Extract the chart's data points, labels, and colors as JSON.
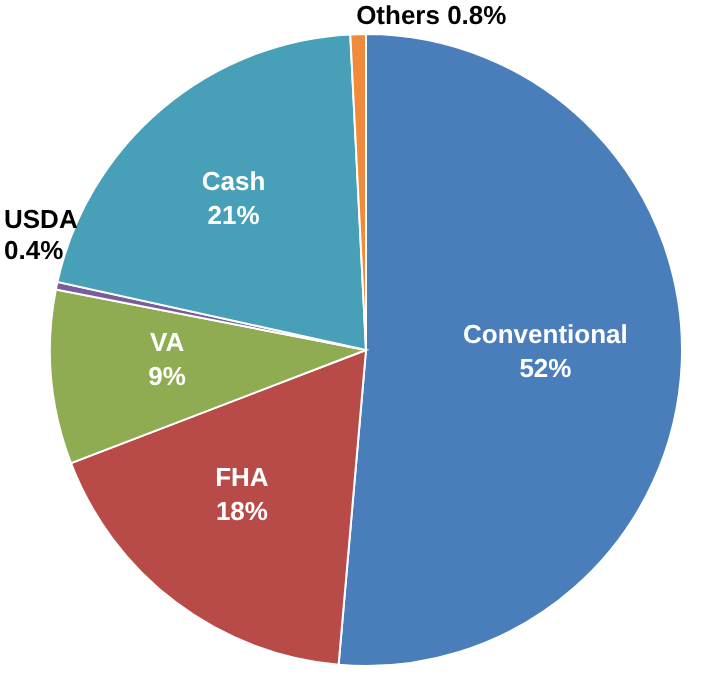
{
  "chart_data": {
    "type": "pie",
    "categories": [
      "Conventional",
      "FHA",
      "VA",
      "USDA",
      "Cash",
      "Others"
    ],
    "values": [
      52,
      18,
      9,
      0.4,
      21,
      0.8
    ],
    "value_labels": [
      "52%",
      "18%",
      "9%",
      "0.4%",
      "21%",
      "0.8%"
    ],
    "colors": [
      "#4a7ebb",
      "#b84a47",
      "#8fac52",
      "#7a5c9a",
      "#47a0b8",
      "#f08a3c"
    ]
  }
}
